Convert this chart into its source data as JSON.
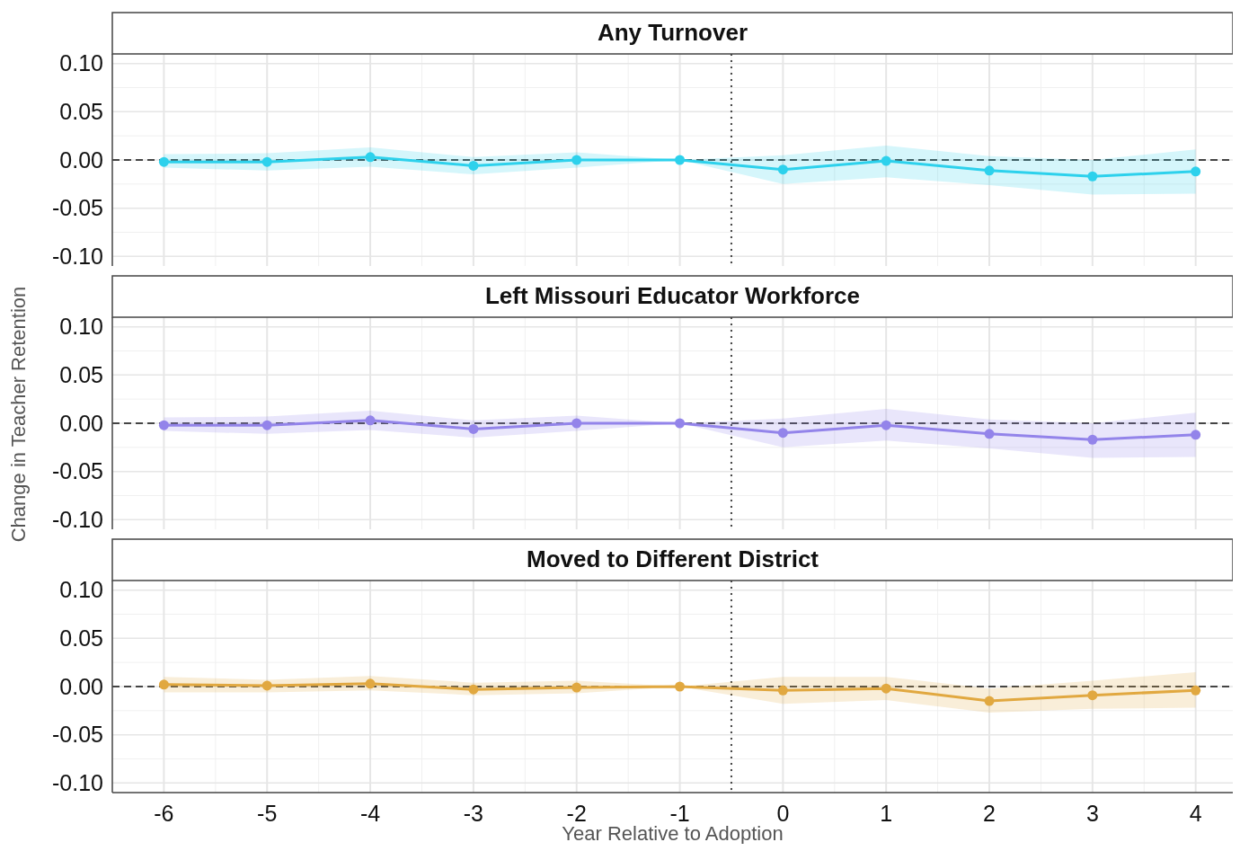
{
  "chart_data": [
    {
      "type": "line",
      "title": "Any Turnover",
      "x": [
        -6,
        -5,
        -4,
        -3,
        -2,
        -1,
        0,
        1,
        2,
        3,
        4
      ],
      "xlim": [
        -6.5,
        4.36
      ],
      "xticks": [
        -6,
        -5,
        -4,
        -3,
        -2,
        -1,
        0,
        1,
        2,
        3,
        4
      ],
      "ylim": [
        -0.11,
        0.11
      ],
      "yticks": [
        {
          "value": -0.1,
          "label": "-0.10"
        },
        {
          "value": -0.05,
          "label": "-0.05"
        },
        {
          "value": 0,
          "label": "0.00"
        },
        {
          "value": 0.05,
          "label": "0.05"
        },
        {
          "value": 0.1,
          "label": "0.10"
        }
      ],
      "grid": true,
      "marker": "circle",
      "tick_labels": "y",
      "ref_lines": [
        {
          "axis": "y",
          "value": 0,
          "line_style": "dashed",
          "color": "#444444"
        },
        {
          "axis": "x",
          "value": -0.5,
          "line_style": "dotted",
          "color": "#444444"
        }
      ],
      "series": [
        {
          "color": "#2dd1ec",
          "values": [
            -0.002,
            -0.002,
            0.003,
            -0.006,
            0.0,
            0.0,
            -0.01,
            -0.001,
            -0.011,
            -0.017,
            -0.012
          ],
          "lower": [
            -0.008,
            -0.011,
            -0.007,
            -0.015,
            -0.008,
            0,
            -0.025,
            -0.018,
            -0.026,
            -0.036,
            -0.035
          ],
          "upper": [
            0.006,
            0.007,
            0.013,
            0.003,
            0.008,
            0,
            0.005,
            0.015,
            0.004,
            0.0,
            0.011
          ]
        }
      ]
    },
    {
      "type": "line",
      "title": "Left Missouri Educator Workforce",
      "ylabel": "Change in Teacher Retention",
      "x": [
        -6,
        -5,
        -4,
        -3,
        -2,
        -1,
        0,
        1,
        2,
        3,
        4
      ],
      "xlim": [
        -6.5,
        4.36
      ],
      "xticks": [
        -6,
        -5,
        -4,
        -3,
        -2,
        -1,
        0,
        1,
        2,
        3,
        4
      ],
      "ylim": [
        -0.11,
        0.11
      ],
      "yticks": [
        {
          "value": -0.1,
          "label": "-0.10"
        },
        {
          "value": -0.05,
          "label": "-0.05"
        },
        {
          "value": 0,
          "label": "0.00"
        },
        {
          "value": 0.05,
          "label": "0.05"
        },
        {
          "value": 0.1,
          "label": "0.10"
        }
      ],
      "grid": true,
      "marker": "circle",
      "tick_labels": "y",
      "ref_lines": [
        {
          "axis": "y",
          "value": 0,
          "line_style": "dashed",
          "color": "#444444"
        },
        {
          "axis": "x",
          "value": -0.5,
          "line_style": "dotted",
          "color": "#444444"
        }
      ],
      "series": [
        {
          "color": "#9384ea",
          "values": [
            -0.002,
            -0.002,
            0.003,
            -0.006,
            0.0,
            0.0,
            -0.01,
            -0.002,
            -0.011,
            -0.017,
            -0.012
          ],
          "lower": [
            -0.008,
            -0.011,
            -0.007,
            -0.015,
            -0.008,
            0,
            -0.025,
            -0.018,
            -0.026,
            -0.036,
            -0.035
          ],
          "upper": [
            0.006,
            0.007,
            0.013,
            0.003,
            0.008,
            0,
            0.005,
            0.015,
            0.004,
            0.0,
            0.011
          ]
        }
      ]
    },
    {
      "type": "line",
      "title": "Moved to Different District",
      "xlabel": "Year Relative to Adoption",
      "x": [
        -6,
        -5,
        -4,
        -3,
        -2,
        -1,
        0,
        1,
        2,
        3,
        4
      ],
      "xlim": [
        -6.5,
        4.36
      ],
      "xticks": [
        -6,
        -5,
        -4,
        -3,
        -2,
        -1,
        0,
        1,
        2,
        3,
        4
      ],
      "ylim": [
        -0.11,
        0.11
      ],
      "yticks": [
        {
          "value": -0.1,
          "label": "-0.10"
        },
        {
          "value": -0.05,
          "label": "-0.05"
        },
        {
          "value": 0,
          "label": "0.00"
        },
        {
          "value": 0.05,
          "label": "0.05"
        },
        {
          "value": 0.1,
          "label": "0.10"
        }
      ],
      "grid": true,
      "marker": "circle",
      "ref_lines": [
        {
          "axis": "y",
          "value": 0,
          "line_style": "dashed",
          "color": "#444444"
        },
        {
          "axis": "x",
          "value": -0.5,
          "line_style": "dotted",
          "color": "#444444"
        }
      ],
      "series": [
        {
          "color": "#e1a840",
          "values": [
            0.002,
            0.001,
            0.003,
            -0.003,
            -0.001,
            0.0,
            -0.004,
            -0.002,
            -0.015,
            -0.009,
            -0.004
          ],
          "lower": [
            -0.006,
            -0.006,
            -0.004,
            -0.009,
            -0.007,
            0,
            -0.018,
            -0.014,
            -0.027,
            -0.023,
            -0.022
          ],
          "upper": [
            0.01,
            0.007,
            0.011,
            0.004,
            0.006,
            0,
            0.01,
            0.01,
            -0.002,
            0.006,
            0.015
          ]
        }
      ]
    }
  ]
}
